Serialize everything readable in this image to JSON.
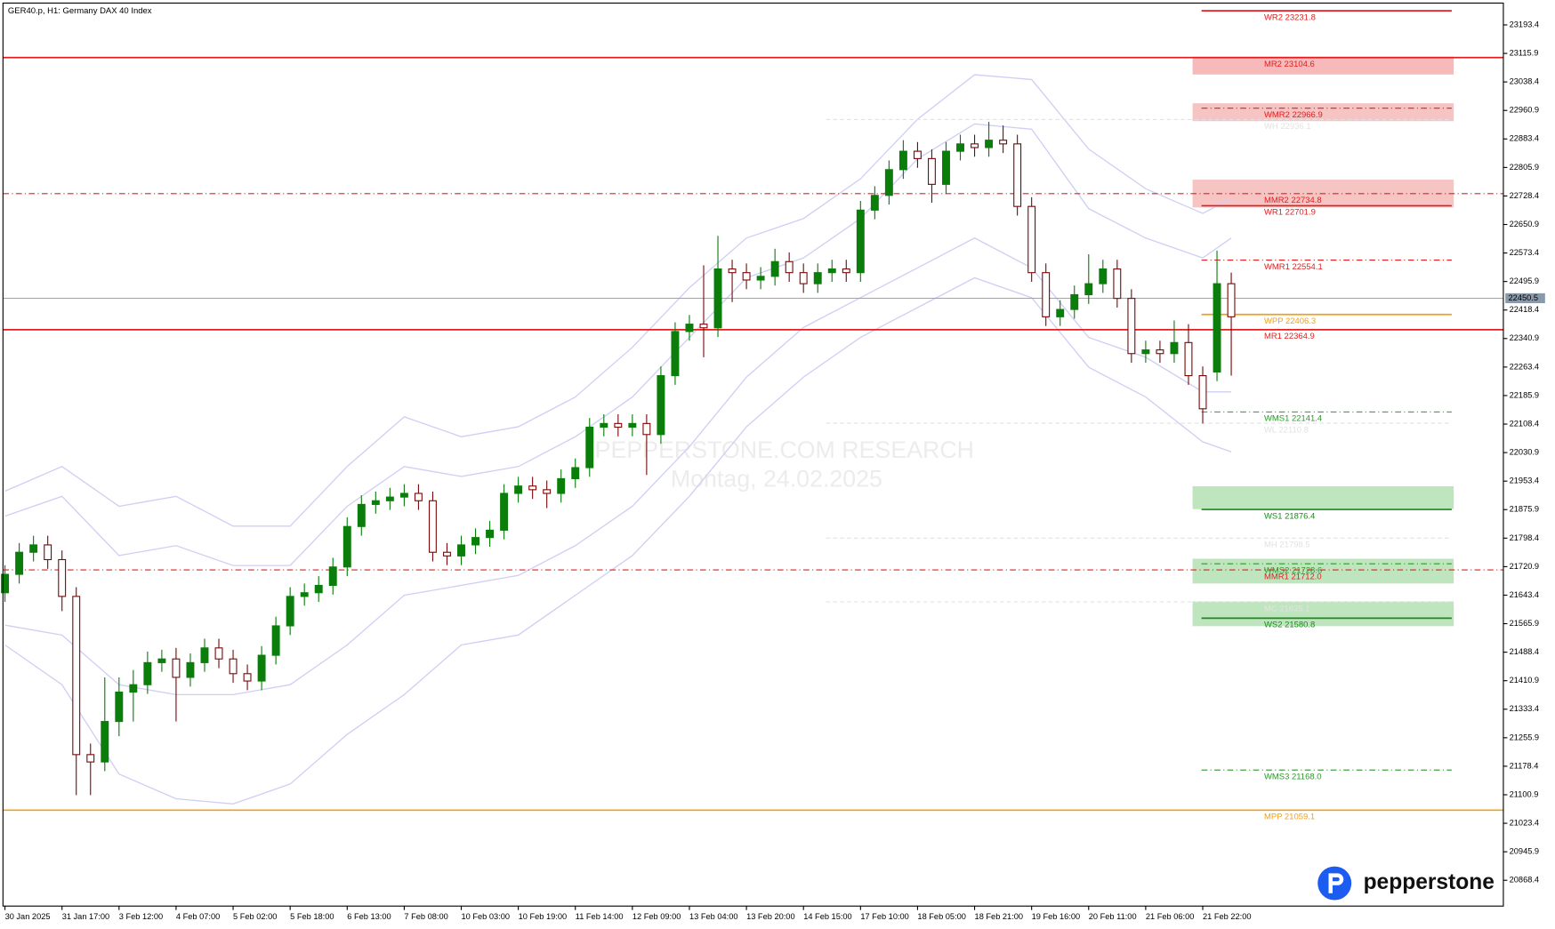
{
  "chart_data": {
    "type": "candlestick",
    "title": "GER40.p, H1:  Germany DAX 40 Index",
    "watermark": [
      "PEPPERSTONE.COM RESEARCH",
      "Montag, 24.02.2025"
    ],
    "logo": "pepperstone",
    "up_color": "#0b7d0b",
    "down_color": "#7a0a0a",
    "ylim": [
      20798.3,
      23252.7
    ],
    "yticks": [
      23193.4,
      23115.9,
      23038.4,
      22960.9,
      22883.4,
      22805.9,
      22728.4,
      22650.9,
      22573.4,
      22495.9,
      22418.4,
      22340.9,
      22263.4,
      22185.9,
      22108.4,
      22030.9,
      21953.4,
      21875.9,
      21798.4,
      21720.9,
      21643.4,
      21565.9,
      21488.4,
      21410.9,
      21333.4,
      21255.9,
      21178.4,
      21100.9,
      21023.4,
      20945.9,
      20868.4
    ],
    "current_price": 22450.5,
    "current_color": "#8a99aa",
    "xtick_every": 4,
    "xlabels": [
      "30 Jan 2025",
      "31 Jan 17:00",
      "3 Feb 12:00",
      "4 Feb 07:00",
      "5 Feb 02:00",
      "5 Feb 18:00",
      "6 Feb 13:00",
      "7 Feb 08:00",
      "10 Feb 03:00",
      "10 Feb 19:00",
      "11 Feb 14:00",
      "12 Feb 09:00",
      "13 Feb 04:00",
      "13 Feb 20:00",
      "14 Feb 15:00",
      "17 Feb 10:00",
      "18 Feb 05:00",
      "18 Feb 21:00",
      "19 Feb 16:00",
      "20 Feb 11:00",
      "21 Feb 06:00",
      "21 Feb 22:00"
    ],
    "open": [
      21650,
      21700,
      21760,
      21780,
      21740,
      21640,
      21210,
      21190,
      21300,
      21380,
      21400,
      21460,
      21470,
      21420,
      21460,
      21500,
      21470,
      21430,
      21410,
      21480,
      21560,
      21640,
      21650,
      21670,
      21720,
      21830,
      21890,
      21900,
      21910,
      21920,
      21900,
      21760,
      21750,
      21780,
      21800,
      21820,
      21920,
      21940,
      21930,
      21920,
      21960,
      21990,
      22100,
      22110,
      22100,
      22110,
      22080,
      22240,
      22360,
      22380,
      22370,
      22530,
      22520,
      22500,
      22510,
      22550,
      22520,
      22490,
      22520,
      22530,
      22520,
      22690,
      22730,
      22800,
      22850,
      22830,
      22760,
      22850,
      22870,
      22860,
      22880,
      22870,
      22700,
      22520,
      22400,
      22420,
      22460,
      22490,
      22530,
      22450,
      22300,
      22310,
      22300,
      22330,
      22240,
      22250,
      22490
    ],
    "high": [
      21725,
      21785,
      21805,
      21805,
      21765,
      21665,
      21240,
      21420,
      21420,
      21440,
      21490,
      21495,
      21500,
      21485,
      21525,
      21525,
      21495,
      21455,
      21505,
      21585,
      21665,
      21675,
      21695,
      21745,
      21855,
      21915,
      21925,
      21935,
      21945,
      21945,
      21925,
      21785,
      21805,
      21825,
      21845,
      21945,
      21965,
      21965,
      21955,
      21985,
      22015,
      22125,
      22135,
      22135,
      22135,
      22135,
      22265,
      22385,
      22405,
      22540,
      22620,
      22555,
      22545,
      22535,
      22585,
      22575,
      22545,
      22545,
      22555,
      22555,
      22715,
      22755,
      22825,
      22880,
      22875,
      22855,
      22875,
      22895,
      22895,
      22930,
      22920,
      22895,
      22725,
      22545,
      22445,
      22485,
      22570,
      22555,
      22555,
      22475,
      22335,
      22335,
      22390,
      22380,
      22265,
      22580,
      22520
    ],
    "low": [
      21625,
      21675,
      21735,
      21715,
      21600,
      21100,
      21100,
      21165,
      21260,
      21300,
      21375,
      21435,
      21300,
      21395,
      21435,
      21445,
      21405,
      21385,
      21385,
      21455,
      21535,
      21615,
      21625,
      21645,
      21695,
      21805,
      21865,
      21875,
      21885,
      21875,
      21735,
      21725,
      21725,
      21755,
      21775,
      21795,
      21895,
      21905,
      21880,
      21895,
      21935,
      21965,
      22075,
      22075,
      22075,
      21970,
      22055,
      22215,
      22335,
      22290,
      22345,
      22440,
      22475,
      22475,
      22485,
      22495,
      22465,
      22465,
      22495,
      22495,
      22495,
      22665,
      22705,
      22775,
      22805,
      22710,
      22735,
      22825,
      22835,
      22835,
      22845,
      22675,
      22495,
      22375,
      22375,
      22395,
      22435,
      22465,
      22425,
      22275,
      22275,
      22275,
      22275,
      22215,
      22110,
      22225,
      22240
    ],
    "close": [
      21700,
      21760,
      21780,
      21740,
      21640,
      21210,
      21190,
      21300,
      21380,
      21400,
      21460,
      21470,
      21420,
      21460,
      21500,
      21470,
      21430,
      21410,
      21480,
      21560,
      21640,
      21650,
      21670,
      21720,
      21830,
      21890,
      21900,
      21910,
      21920,
      21900,
      21760,
      21750,
      21780,
      21800,
      21820,
      21920,
      21940,
      21930,
      21920,
      21960,
      21990,
      22100,
      22110,
      22100,
      22110,
      22080,
      22240,
      22360,
      22380,
      22370,
      22530,
      22520,
      22500,
      22510,
      22550,
      22520,
      22490,
      22520,
      22530,
      22520,
      22690,
      22730,
      22800,
      22850,
      22830,
      22760,
      22850,
      22870,
      22860,
      22880,
      22870,
      22700,
      22520,
      22400,
      22420,
      22460,
      22490,
      22530,
      22450,
      22300,
      22310,
      22300,
      22330,
      22240,
      22150,
      22490,
      22400
    ],
    "band_x": [
      0,
      4,
      8,
      12,
      16,
      20,
      24,
      28,
      32,
      36,
      40,
      44,
      48,
      52,
      56,
      60,
      64,
      68,
      72,
      76,
      80,
      84,
      86
    ],
    "bands": [
      {
        "color": "#cfcff5",
        "values": [
          21926,
          21993,
          21885,
          21912,
          21831,
          21831,
          21993,
          22128,
          22074,
          22101,
          22182,
          22317,
          22479,
          22614,
          22667,
          22775,
          22937,
          23058,
          23045,
          22856,
          22748,
          22681,
          22721
        ]
      },
      {
        "color": "#cfcff5",
        "values": [
          21858,
          21912,
          21751,
          21778,
          21724,
          21724,
          21885,
          21993,
          21966,
          21993,
          22074,
          22182,
          22344,
          22506,
          22560,
          22667,
          22829,
          22924,
          22910,
          22694,
          22614,
          22560,
          22614
        ]
      },
      {
        "color": "#cfcff5",
        "values": [
          21562,
          21535,
          21400,
          21373,
          21373,
          21400,
          21508,
          21643,
          21670,
          21697,
          21778,
          21885,
          22047,
          22236,
          22371,
          22452,
          22533,
          22614,
          22533,
          22344,
          22290,
          22196,
          22196
        ]
      },
      {
        "color": "#cfcff5",
        "values": [
          21508,
          21400,
          21157,
          21090,
          21076,
          21130,
          21265,
          21373,
          21508,
          21535,
          21643,
          21751,
          21912,
          22101,
          22236,
          22344,
          22425,
          22506,
          22452,
          22263,
          22182,
          22060,
          22033
        ]
      }
    ],
    "zones": [
      {
        "from": 23107.1,
        "to": 23058.6,
        "color": "#f7b9b9"
      },
      {
        "from": 22980.4,
        "to": 22931.8,
        "color": "#f7c4c4"
      },
      {
        "from": 22772.7,
        "to": 22697.2,
        "color": "#f7c4c4"
      },
      {
        "from": 21939.4,
        "to": 21877.3,
        "color": "#bfe5bf"
      },
      {
        "from": 21742.5,
        "to": 21675.1,
        "color": "#bfe5bf"
      },
      {
        "from": 21626.5,
        "to": 21559.1,
        "color": "#bfe5bf"
      }
    ],
    "levels": [
      {
        "label": "WR2 23231.8",
        "value": 23231.8,
        "color": "#e02020",
        "style": "solid",
        "extent": "right"
      },
      {
        "label": "MR2 23104.6",
        "value": 23104.6,
        "color": "#e02020",
        "style": "solid",
        "extent": "full"
      },
      {
        "label": "WMR2 22966.9",
        "value": 22966.9,
        "color": "#e02020",
        "style": "dashdot",
        "extent": "right"
      },
      {
        "label": "WH 22936.1",
        "value": 22936.1,
        "color": "#e2e2e2",
        "style": "dashed",
        "extent": "wide"
      },
      {
        "label": "MMR2 22734.8",
        "value": 22734.8,
        "color": "#e02020",
        "style": "dashdot",
        "extent": "full"
      },
      {
        "label": "WR1 22701.9",
        "value": 22701.9,
        "color": "#e02020",
        "style": "solid",
        "extent": "right"
      },
      {
        "label": "WMR1 22554.1",
        "value": 22554.1,
        "color": "#e02020",
        "style": "dashdot",
        "extent": "right"
      },
      {
        "label": "WPP 22406.3",
        "value": 22406.3,
        "color": "#f0a020",
        "style": "solid",
        "extent": "right"
      },
      {
        "label": "MR1 22364.9",
        "value": 22364.9,
        "color": "#e02020",
        "style": "solid",
        "extent": "full"
      },
      {
        "label": "WMS1 22141.4",
        "value": 22141.4,
        "color": "#2a9a2a",
        "style": "dashdot",
        "extent": "right"
      },
      {
        "label": "WL 22110.8",
        "value": 22110.8,
        "color": "#e2e2e2",
        "style": "dashed",
        "extent": "wide"
      },
      {
        "label": "WS1 21876.4",
        "value": 21876.4,
        "color": "#1a8a1a",
        "style": "solid",
        "extent": "right"
      },
      {
        "label": "MH 21798.5",
        "value": 21798.5,
        "color": "#e2e2e2",
        "style": "dashed",
        "extent": "wide"
      },
      {
        "label": "WMS2 21728.6",
        "value": 21728.6,
        "color": "#2a9a2a",
        "style": "dashdot",
        "extent": "right"
      },
      {
        "label": "MMR1 21712.0",
        "value": 21712.0,
        "color": "#e02020",
        "style": "dashdot",
        "extent": "full"
      },
      {
        "label": "MC 21625.1",
        "value": 21625.1,
        "color": "#e2e2e2",
        "style": "dashed",
        "extent": "wide"
      },
      {
        "label": "WS2 21580.8",
        "value": 21580.8,
        "color": "#1a8a1a",
        "style": "solid",
        "extent": "right"
      },
      {
        "label": "WMS3 21168.0",
        "value": 21168.0,
        "color": "#2a9a2a",
        "style": "dashdot",
        "extent": "right"
      },
      {
        "label": "MPP 21059.1",
        "value": 21059.1,
        "color": "#f0a020",
        "style": "solid",
        "extent": "full"
      }
    ]
  }
}
